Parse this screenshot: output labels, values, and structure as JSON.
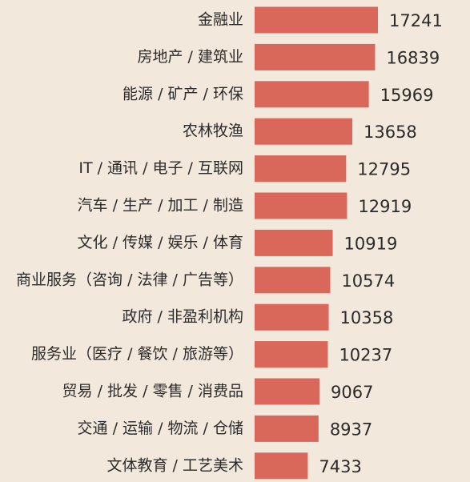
{
  "chart_data": {
    "type": "bar",
    "orientation": "horizontal",
    "categories": [
      "金融业",
      "房地产 / 建筑业",
      "能源 / 矿产 / 环保",
      "农林牧渔",
      "IT / 通讯 / 电子 / 互联网",
      "汽车 / 生产 / 加工 / 制造",
      "文化 / 传媒 / 娱乐 / 体育",
      "商业服务（咨询 / 法律 / 广告等）",
      "政府 / 非盈利机构",
      "服务业（医疗 / 餐饮 / 旅游等）",
      "贸易 / 批发 / 零售 / 消费品",
      "交通 / 运输 / 物流 / 仓储",
      "文体教育 / 工艺美术"
    ],
    "values": [
      17241,
      16839,
      15969,
      13658,
      12795,
      12919,
      10919,
      10574,
      10358,
      10237,
      9067,
      8937,
      7433
    ],
    "title": "",
    "xlabel": "",
    "ylabel": "",
    "xlim": [
      0,
      17241
    ],
    "grid": false,
    "legend": "none",
    "bar_color": "#d9675a"
  },
  "colors": {
    "background": "#f3e8dc",
    "bar": "#d9675a",
    "text": "#2b2b2b"
  }
}
